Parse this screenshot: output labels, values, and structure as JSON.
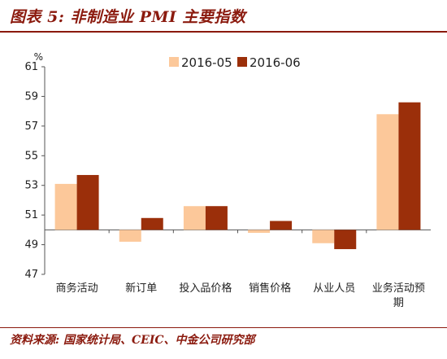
{
  "header": {
    "title": "图表 5:  非制造业 PMI 主要指数"
  },
  "footer": {
    "source": "资料来源:  国家统计局、CEIC、中金公司研究部"
  },
  "chart_data": {
    "type": "bar",
    "unit": "%",
    "categories": [
      "商务活动",
      "新订单",
      "投入品价格",
      "销售价格",
      "从业人员",
      "业务活动预期"
    ],
    "category_lines": [
      [
        "商务活动"
      ],
      [
        "新订单"
      ],
      [
        "投入品价格"
      ],
      [
        "销售价格"
      ],
      [
        "从业人员"
      ],
      [
        "业务活动预",
        "期"
      ]
    ],
    "series": [
      {
        "name": "2016-05",
        "values": [
          53.1,
          49.2,
          51.6,
          49.8,
          49.1,
          57.8
        ],
        "color": "#fcc89a"
      },
      {
        "name": "2016-06",
        "values": [
          53.7,
          50.8,
          51.6,
          50.6,
          48.7,
          58.6
        ],
        "color": "#9b2f0a"
      }
    ],
    "ylim": [
      47,
      61
    ],
    "yticks": [
      47,
      49,
      51,
      53,
      55,
      57,
      59,
      61
    ],
    "baseline": 50,
    "grid": false,
    "legend_position": "top-center"
  }
}
